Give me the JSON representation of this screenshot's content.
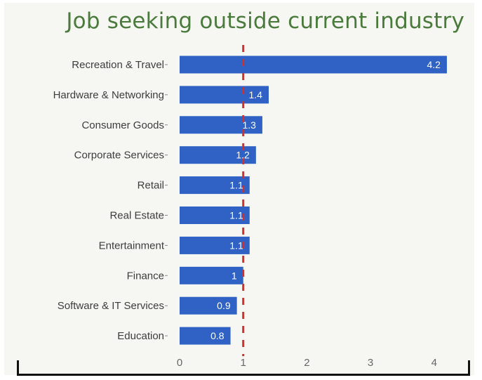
{
  "chart_data": {
    "type": "bar",
    "orientation": "horizontal",
    "title": "Job seeking outside current industry",
    "categories": [
      "Recreation & Travel",
      "Hardware & Networking",
      "Consumer Goods",
      "Corporate Services",
      "Retail",
      "Real Estate",
      "Entertainment",
      "Finance",
      "Software & IT Services",
      "Education"
    ],
    "values": [
      4.2,
      1.4,
      1.3,
      1.2,
      1.1,
      1.1,
      1.1,
      1.0,
      0.9,
      0.8
    ],
    "value_labels": [
      "4.2",
      "1.4",
      "1.3",
      "1.2",
      "1.1",
      "1.1",
      "1.1",
      "1",
      "0.9",
      "0.8"
    ],
    "x_ticks": [
      "0",
      "1",
      "2",
      "3",
      "4"
    ],
    "xlim": [
      0,
      4.35
    ],
    "reference_line": {
      "x": 1,
      "style": "dashed",
      "color": "#d0312d"
    },
    "bar_color": "#2f62c4",
    "grid": false
  }
}
